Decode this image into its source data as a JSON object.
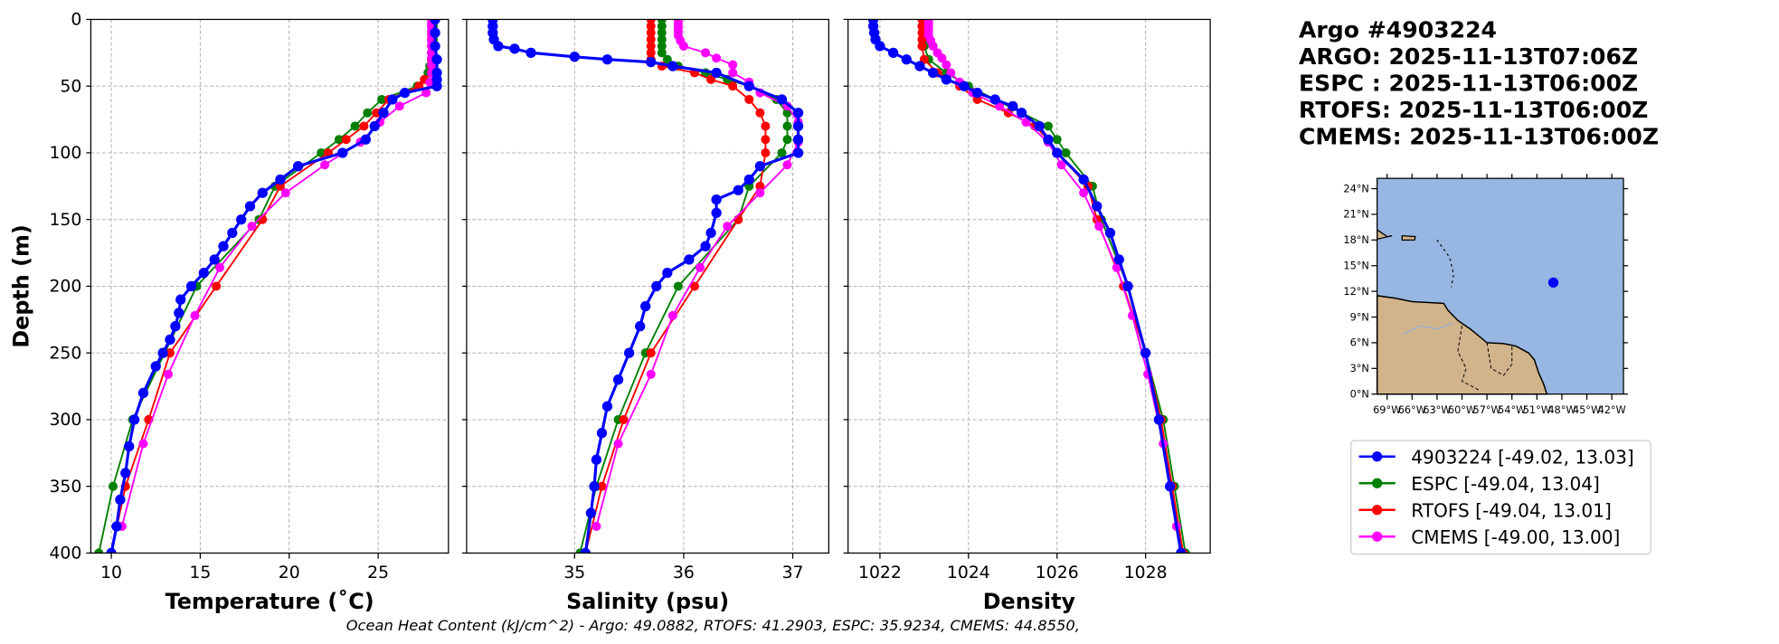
{
  "chart_data": [
    {
      "type": "line",
      "id": "temperature",
      "xlabel": "Temperature (˚C)",
      "ylabel": "Depth (m)",
      "xlim": [
        8.85,
        28.95
      ],
      "ylim": [
        400,
        0
      ],
      "grid": true,
      "xticks": [
        10,
        15,
        20,
        25
      ],
      "yticks": [
        0,
        50,
        100,
        150,
        200,
        250,
        300,
        350,
        400
      ],
      "series": [
        {
          "name": "Argo",
          "depth": [
            0,
            10,
            20,
            30,
            40,
            45,
            50,
            55,
            60,
            70,
            80,
            90,
            100,
            110,
            120,
            130,
            140,
            150,
            160,
            170,
            180,
            190,
            200,
            210,
            220,
            230,
            240,
            250,
            260,
            280,
            300,
            320,
            340,
            360,
            380,
            400
          ],
          "values": [
            28.2,
            28.2,
            28.2,
            28.3,
            28.3,
            28.3,
            28.3,
            26.5,
            25.8,
            25.3,
            24.8,
            24.3,
            23.0,
            20.5,
            19.5,
            18.5,
            17.8,
            17.3,
            16.8,
            16.3,
            15.8,
            15.2,
            14.5,
            13.9,
            13.8,
            13.6,
            13.3,
            12.9,
            12.5,
            11.8,
            11.3,
            11.0,
            10.8,
            10.5,
            10.3,
            10.0
          ]
        },
        {
          "name": "ESPC",
          "depth": [
            0,
            5,
            10,
            15,
            20,
            25,
            30,
            35,
            40,
            50,
            60,
            70,
            80,
            90,
            100,
            125,
            150,
            200,
            250,
            300,
            350,
            400
          ],
          "values": [
            28.1,
            28.1,
            28.1,
            28.1,
            28.0,
            28.0,
            28.0,
            27.9,
            27.8,
            27.2,
            25.2,
            24.4,
            23.7,
            22.8,
            21.8,
            19.2,
            18.3,
            14.8,
            13.0,
            11.2,
            10.1,
            9.3
          ]
        },
        {
          "name": "RTOFS",
          "depth": [
            0,
            5,
            10,
            15,
            20,
            25,
            30,
            35,
            40,
            45,
            50,
            60,
            70,
            80,
            90,
            100,
            125,
            150,
            200,
            250,
            300,
            350,
            400
          ],
          "values": [
            28.0,
            28.0,
            28.0,
            28.0,
            28.0,
            28.0,
            28.0,
            28.0,
            28.0,
            27.6,
            27.3,
            25.6,
            24.9,
            24.2,
            23.2,
            22.2,
            19.5,
            18.5,
            15.9,
            13.3,
            12.1,
            10.8,
            10.0
          ]
        },
        {
          "name": "CMEMS",
          "depth": [
            0,
            3,
            6,
            9,
            12,
            16,
            20,
            25,
            29,
            34,
            40,
            47,
            55,
            65,
            77,
            92,
            109,
            130,
            155,
            186,
            222,
            266,
            318,
            380
          ],
          "values": [
            28.0,
            28.0,
            28.0,
            28.0,
            28.0,
            28.0,
            28.0,
            28.0,
            28.0,
            28.0,
            28.0,
            27.9,
            27.7,
            26.2,
            25.1,
            24.0,
            22.0,
            19.8,
            17.9,
            16.1,
            14.7,
            13.2,
            11.8,
            10.6
          ]
        }
      ]
    },
    {
      "type": "line",
      "id": "salinity",
      "xlabel": "Salinity (psu)",
      "xlim": [
        34.01,
        37.33
      ],
      "ylim": [
        400,
        0
      ],
      "grid": true,
      "xticks": [
        35,
        36,
        37
      ],
      "yticks": [
        0,
        50,
        100,
        150,
        200,
        250,
        300,
        350,
        400
      ],
      "series": [
        {
          "name": "Argo",
          "depth": [
            0,
            5,
            10,
            15,
            20,
            22,
            25,
            28,
            30,
            32,
            35,
            40,
            50,
            60,
            70,
            80,
            90,
            100,
            110,
            120,
            128,
            135,
            145,
            160,
            170,
            180,
            190,
            200,
            215,
            230,
            250,
            270,
            290,
            310,
            330,
            350,
            370,
            400
          ],
          "values": [
            34.25,
            34.25,
            34.25,
            34.26,
            34.3,
            34.45,
            34.6,
            35.0,
            35.3,
            35.7,
            35.9,
            36.3,
            36.6,
            36.9,
            37.05,
            37.05,
            37.05,
            37.05,
            36.7,
            36.6,
            36.5,
            36.3,
            36.3,
            36.25,
            36.2,
            36.05,
            35.85,
            35.75,
            35.65,
            35.6,
            35.5,
            35.4,
            35.3,
            35.25,
            35.2,
            35.18,
            35.15,
            35.1
          ]
        },
        {
          "name": "ESPC",
          "depth": [
            0,
            5,
            10,
            15,
            20,
            25,
            30,
            35,
            40,
            45,
            50,
            60,
            70,
            80,
            90,
            100,
            125,
            150,
            200,
            250,
            300,
            350,
            400
          ],
          "values": [
            35.8,
            35.8,
            35.8,
            35.8,
            35.8,
            35.8,
            35.85,
            35.95,
            36.2,
            36.4,
            36.6,
            36.85,
            36.95,
            36.95,
            36.95,
            36.9,
            36.6,
            36.5,
            35.95,
            35.65,
            35.4,
            35.2,
            35.05
          ]
        },
        {
          "name": "RTOFS",
          "depth": [
            0,
            5,
            10,
            15,
            20,
            25,
            30,
            35,
            40,
            45,
            50,
            60,
            70,
            80,
            90,
            100,
            125,
            150,
            200,
            250,
            300,
            350,
            400
          ],
          "values": [
            35.7,
            35.7,
            35.7,
            35.7,
            35.7,
            35.7,
            35.7,
            35.8,
            36.1,
            36.25,
            36.45,
            36.6,
            36.7,
            36.75,
            36.75,
            36.75,
            36.7,
            36.5,
            36.1,
            35.7,
            35.45,
            35.25,
            35.1
          ]
        },
        {
          "name": "CMEMS",
          "depth": [
            0,
            3,
            6,
            9,
            12,
            16,
            20,
            25,
            29,
            34,
            40,
            47,
            55,
            65,
            77,
            92,
            109,
            130,
            155,
            186,
            222,
            266,
            318,
            380
          ],
          "values": [
            35.95,
            35.95,
            35.95,
            35.95,
            35.95,
            35.97,
            36.0,
            36.2,
            36.3,
            36.45,
            36.45,
            36.6,
            36.7,
            36.95,
            37.05,
            37.05,
            36.95,
            36.7,
            36.4,
            36.15,
            35.9,
            35.7,
            35.4,
            35.2
          ]
        }
      ]
    },
    {
      "type": "line",
      "id": "density",
      "xlabel": "Density",
      "xlim": [
        1021.28,
        1029.46
      ],
      "ylim": [
        400,
        0
      ],
      "grid": true,
      "xticks": [
        1022,
        1024,
        1026,
        1028
      ],
      "yticks": [
        0,
        50,
        100,
        150,
        200,
        250,
        300,
        350,
        400
      ],
      "series": [
        {
          "name": "Argo",
          "depth": [
            0,
            5,
            10,
            15,
            20,
            25,
            30,
            35,
            40,
            45,
            50,
            55,
            60,
            65,
            70,
            80,
            90,
            100,
            120,
            140,
            160,
            180,
            200,
            250,
            300,
            350,
            400
          ],
          "values": [
            1021.85,
            1021.85,
            1021.87,
            1021.9,
            1022.0,
            1022.3,
            1022.6,
            1022.9,
            1023.2,
            1023.5,
            1023.9,
            1024.2,
            1024.6,
            1025.0,
            1025.2,
            1025.6,
            1025.8,
            1026.0,
            1026.6,
            1026.9,
            1027.2,
            1027.4,
            1027.6,
            1028.0,
            1028.3,
            1028.55,
            1028.8
          ]
        },
        {
          "name": "ESPC",
          "depth": [
            0,
            5,
            10,
            15,
            20,
            30,
            40,
            50,
            60,
            70,
            80,
            90,
            100,
            125,
            150,
            200,
            250,
            300,
            350,
            400
          ],
          "values": [
            1023.0,
            1023.0,
            1023.0,
            1023.0,
            1023.0,
            1023.1,
            1023.5,
            1024.0,
            1024.6,
            1025.2,
            1025.8,
            1026.0,
            1026.2,
            1026.8,
            1027.0,
            1027.6,
            1028.0,
            1028.4,
            1028.65,
            1028.9
          ]
        },
        {
          "name": "RTOFS",
          "depth": [
            0,
            5,
            10,
            15,
            20,
            30,
            40,
            50,
            60,
            70,
            80,
            90,
            100,
            125,
            150,
            200,
            250,
            300,
            350,
            400
          ],
          "values": [
            1022.95,
            1022.95,
            1022.95,
            1022.95,
            1022.95,
            1023.0,
            1023.3,
            1023.8,
            1024.2,
            1024.9,
            1025.5,
            1025.8,
            1026.0,
            1026.7,
            1026.9,
            1027.5,
            1028.0,
            1028.35,
            1028.6,
            1028.85
          ]
        },
        {
          "name": "CMEMS",
          "depth": [
            0,
            3,
            6,
            9,
            12,
            16,
            20,
            25,
            29,
            34,
            40,
            47,
            55,
            65,
            77,
            92,
            109,
            130,
            155,
            186,
            222,
            266,
            318,
            380
          ],
          "values": [
            1023.1,
            1023.1,
            1023.1,
            1023.1,
            1023.1,
            1023.15,
            1023.2,
            1023.3,
            1023.4,
            1023.5,
            1023.6,
            1023.8,
            1024.1,
            1024.7,
            1025.3,
            1025.8,
            1026.1,
            1026.6,
            1026.95,
            1027.35,
            1027.7,
            1028.05,
            1028.4,
            1028.7
          ]
        }
      ]
    }
  ],
  "colors": {
    "Argo": "#0000ff",
    "ESPC": "#008000",
    "RTOFS": "#ff0000",
    "CMEMS": "#ff00ff",
    "ocean": "#97b6e1",
    "land": "#d2b48c"
  },
  "ylabel": "Depth (m)",
  "title_lines": [
    "Argo #4903224",
    "ARGO: 2025-11-13T07:06Z",
    "ESPC : 2025-11-13T06:00Z",
    "RTOFS: 2025-11-13T06:00Z",
    "CMEMS: 2025-11-13T06:00Z"
  ],
  "legend": [
    "4903224 [-49.02, 13.03]",
    "ESPC [-49.04, 13.04]",
    "RTOFS [-49.04, 13.01]",
    "CMEMS [-49.00, 13.00]"
  ],
  "map": {
    "lon_range": [
      -70.2,
      -40.6
    ],
    "lat_range": [
      0,
      25.2
    ],
    "point": {
      "lon": -49.02,
      "lat": 13.03
    },
    "lon_ticks": [
      -69,
      -66,
      -63,
      -60,
      -57,
      -54,
      -51,
      -48,
      -45,
      -42
    ],
    "lon_labels": [
      "69°W",
      "66°W",
      "63°W",
      "60°W",
      "57°W",
      "54°W",
      "51°W",
      "48°W",
      "45°W",
      "42°W"
    ],
    "lat_ticks": [
      0,
      3,
      6,
      9,
      12,
      15,
      18,
      21,
      24
    ],
    "lat_labels": [
      "0°N",
      "3°N",
      "6°N",
      "9°N",
      "12°N",
      "15°N",
      "18°N",
      "21°N",
      "24°N"
    ]
  },
  "footer": "Ocean Heat Content (kJ/cm^2) - Argo: 49.0882,  RTOFS: 41.2903,  ESPC: 35.9234,  CMEMS: 44.8550,"
}
